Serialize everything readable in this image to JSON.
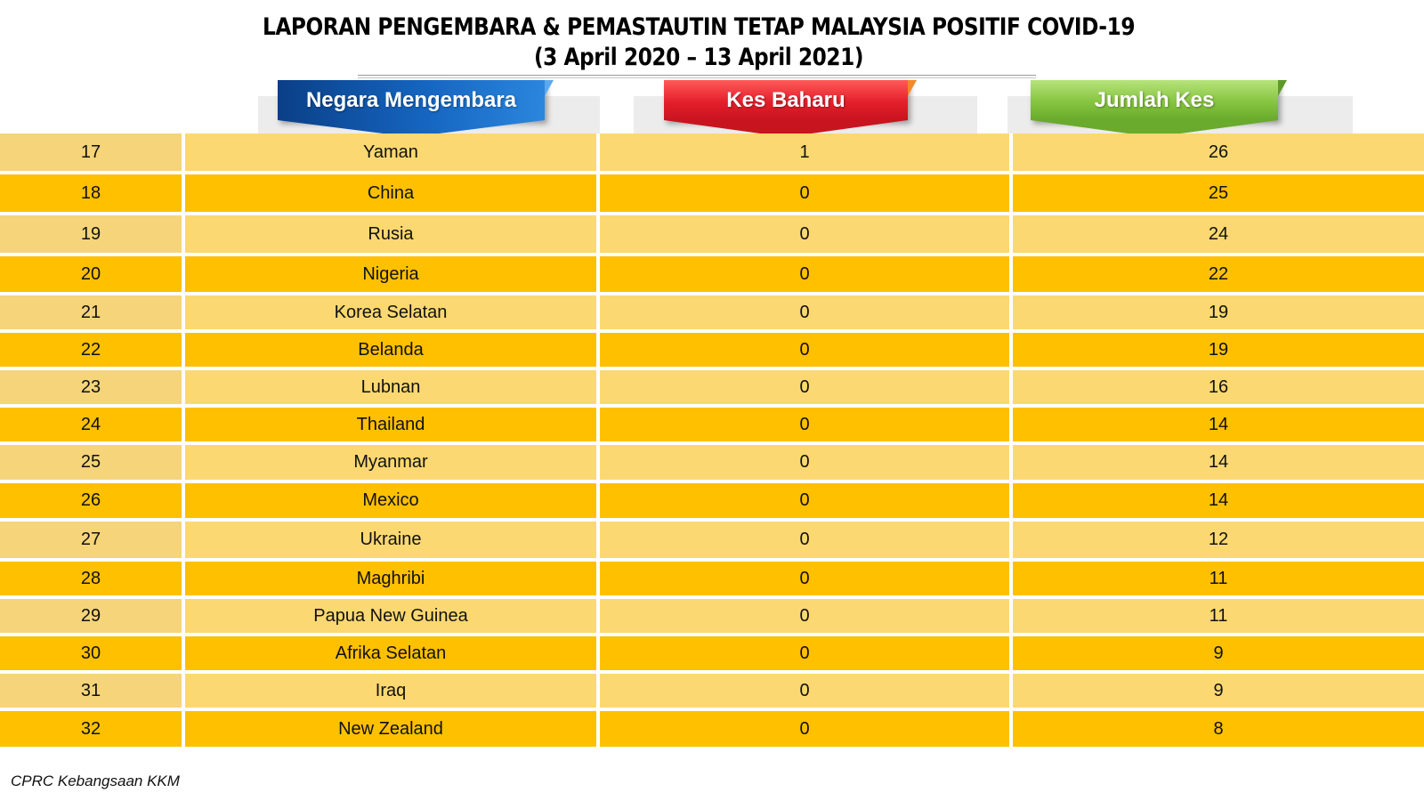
{
  "header": {
    "title_line1": "LAPORAN PENGEMBARA & PEMASTAUTIN TETAP MALAYSIA POSITIF COVID-19",
    "title_line2": "(3 April 2020 – 13 April 2021)"
  },
  "columns": {
    "country": "Negara Mengembara",
    "new_cases": "Kes Baharu",
    "total_cases": "Jumlah Kes"
  },
  "colors": {
    "blue_ribbon": "#1565c0",
    "red_ribbon": "#e41f2b",
    "green_ribbon": "#86c540",
    "row_light": "#fbd871",
    "row_dark": "#ffc000"
  },
  "rows": [
    {
      "no": "17",
      "country": "Yaman",
      "new": "1",
      "total": "26"
    },
    {
      "no": "18",
      "country": "China",
      "new": "0",
      "total": "25"
    },
    {
      "no": "19",
      "country": "Rusia",
      "new": "0",
      "total": "24"
    },
    {
      "no": "20",
      "country": "Nigeria",
      "new": "0",
      "total": "22"
    },
    {
      "no": "21",
      "country": "Korea Selatan",
      "new": "0",
      "total": "19"
    },
    {
      "no": "22",
      "country": "Belanda",
      "new": "0",
      "total": "19"
    },
    {
      "no": "23",
      "country": "Lubnan",
      "new": "0",
      "total": "16"
    },
    {
      "no": "24",
      "country": "Thailand",
      "new": "0",
      "total": "14"
    },
    {
      "no": "25",
      "country": "Myanmar",
      "new": "0",
      "total": "14"
    },
    {
      "no": "26",
      "country": "Mexico",
      "new": "0",
      "total": "14"
    },
    {
      "no": "27",
      "country": "Ukraine",
      "new": "0",
      "total": "12"
    },
    {
      "no": "28",
      "country": "Maghribi",
      "new": "0",
      "total": "11"
    },
    {
      "no": "29",
      "country": "Papua New Guinea",
      "new": "0",
      "total": "11"
    },
    {
      "no": "30",
      "country": "Afrika Selatan",
      "new": "0",
      "total": "9"
    },
    {
      "no": "31",
      "country": "Iraq",
      "new": "0",
      "total": "9"
    },
    {
      "no": "32",
      "country": "New Zealand",
      "new": "0",
      "total": "8"
    }
  ],
  "footer": {
    "source": "CPRC Kebangsaan KKM"
  }
}
